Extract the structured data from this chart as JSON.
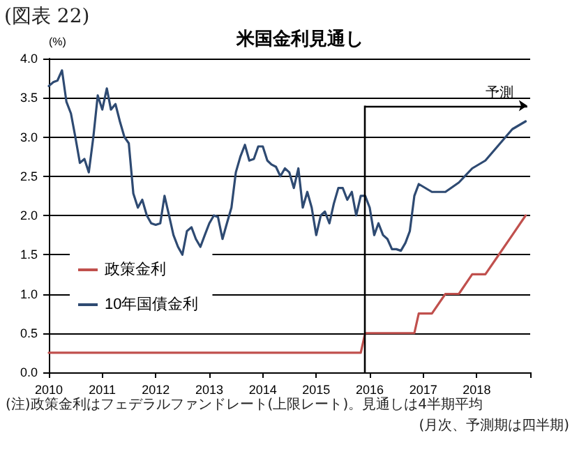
{
  "chart_data": {
    "type": "line",
    "title": "米国金利見通し",
    "ylabel": "(%)",
    "annotations": [
      "(図表 22)",
      "(注)政策金利はフェデラルファンドレート(上限レート)。見通しは4半期平均",
      "(月次、予測期は四半期)"
    ],
    "series": [
      {
        "name": "政策金利",
        "color": "#c0504d",
        "x": [
          "2010-01",
          "2015-11",
          "2015-12",
          "2016-11",
          "2016-12",
          "2017-03",
          "2017-06",
          "2017-09",
          "2017-12",
          "2018-03",
          "2018-06",
          "2018-09",
          "2018-12"
        ],
        "values": [
          0.25,
          0.25,
          0.5,
          0.5,
          0.75,
          0.75,
          1.0,
          1.0,
          1.25,
          1.25,
          1.5,
          1.75,
          2.0
        ]
      },
      {
        "name": "10年国債金利",
        "color": "#2e4a72",
        "x": [
          "2010-01",
          "2010-02",
          "2010-03",
          "2010-04",
          "2010-05",
          "2010-06",
          "2010-07",
          "2010-08",
          "2010-09",
          "2010-10",
          "2010-11",
          "2010-12",
          "2011-01",
          "2011-02",
          "2011-03",
          "2011-04",
          "2011-05",
          "2011-06",
          "2011-07",
          "2011-08",
          "2011-09",
          "2011-10",
          "2011-11",
          "2011-12",
          "2012-01",
          "2012-02",
          "2012-03",
          "2012-04",
          "2012-05",
          "2012-06",
          "2012-07",
          "2012-08",
          "2012-09",
          "2012-10",
          "2012-11",
          "2012-12",
          "2013-01",
          "2013-02",
          "2013-03",
          "2013-04",
          "2013-05",
          "2013-06",
          "2013-07",
          "2013-08",
          "2013-09",
          "2013-10",
          "2013-11",
          "2013-12",
          "2014-01",
          "2014-02",
          "2014-03",
          "2014-04",
          "2014-05",
          "2014-06",
          "2014-07",
          "2014-08",
          "2014-09",
          "2014-10",
          "2014-11",
          "2014-12",
          "2015-01",
          "2015-02",
          "2015-03",
          "2015-04",
          "2015-05",
          "2015-06",
          "2015-07",
          "2015-08",
          "2015-09",
          "2015-10",
          "2015-11",
          "2015-12",
          "2016-01",
          "2016-02",
          "2016-03",
          "2016-04",
          "2016-05",
          "2016-06",
          "2016-07",
          "2016-08",
          "2016-09",
          "2016-10",
          "2016-11",
          "2016-12",
          "2017-03",
          "2017-06",
          "2017-09",
          "2017-12",
          "2018-03",
          "2018-06",
          "2018-09",
          "2018-12"
        ],
        "values": [
          3.65,
          3.7,
          3.72,
          3.85,
          3.45,
          3.3,
          3.0,
          2.67,
          2.72,
          2.55,
          3.0,
          3.53,
          3.35,
          3.62,
          3.35,
          3.42,
          3.2,
          3.0,
          2.92,
          2.28,
          2.1,
          2.2,
          2.0,
          1.9,
          1.88,
          1.9,
          2.25,
          2.0,
          1.75,
          1.6,
          1.5,
          1.8,
          1.85,
          1.7,
          1.6,
          1.75,
          1.9,
          2.0,
          1.98,
          1.7,
          1.9,
          2.1,
          2.55,
          2.75,
          2.9,
          2.7,
          2.72,
          2.88,
          2.88,
          2.7,
          2.65,
          2.62,
          2.5,
          2.6,
          2.55,
          2.35,
          2.6,
          2.1,
          2.3,
          2.1,
          1.75,
          2.0,
          2.05,
          1.9,
          2.15,
          2.35,
          2.35,
          2.2,
          2.3,
          2.0,
          2.25,
          2.25,
          2.1,
          1.75,
          1.9,
          1.75,
          1.7,
          1.57,
          1.57,
          1.55,
          1.65,
          1.8,
          2.25,
          2.4,
          2.3,
          2.3,
          2.42,
          2.6,
          2.7,
          2.9,
          3.1,
          3.2
        ]
      }
    ],
    "xlim": [
      "2010-01-01",
      "2019-01-01"
    ],
    "xticks": [
      {
        "value": "2010-01-01",
        "label": "2010"
      },
      {
        "value": "2011-01-01",
        "label": "2011"
      },
      {
        "value": "2012-01-01",
        "label": "2012"
      },
      {
        "value": "2013-01-01",
        "label": "2013"
      },
      {
        "value": "2014-01-01",
        "label": "2014"
      },
      {
        "value": "2015-01-01",
        "label": "2015"
      },
      {
        "value": "2016-01-01",
        "label": "2016"
      },
      {
        "value": "2017-01-01",
        "label": "2017"
      },
      {
        "value": "2018-01-01",
        "label": "2018"
      },
      {
        "value": "2019-01-01",
        "label": null
      }
    ],
    "ylim": [
      0,
      4
    ],
    "yticks": [
      {
        "value": 0,
        "label": "0.0"
      },
      {
        "value": 0.5,
        "label": "0.5"
      },
      {
        "value": 1,
        "label": "1.0"
      },
      {
        "value": 1.5,
        "label": "1.5"
      },
      {
        "value": 2,
        "label": "2.0"
      },
      {
        "value": 2.5,
        "label": "2.5"
      },
      {
        "value": 3,
        "label": "3.0"
      },
      {
        "value": 3.5,
        "label": "3.5"
      },
      {
        "value": 4,
        "label": "4.0"
      }
    ],
    "ref_lines": [
      {
        "axis": "x",
        "value": "2015-12",
        "label": "予測"
      }
    ],
    "grid": "y",
    "legend": "left",
    "marker": "none",
    "line_style": "solid"
  }
}
